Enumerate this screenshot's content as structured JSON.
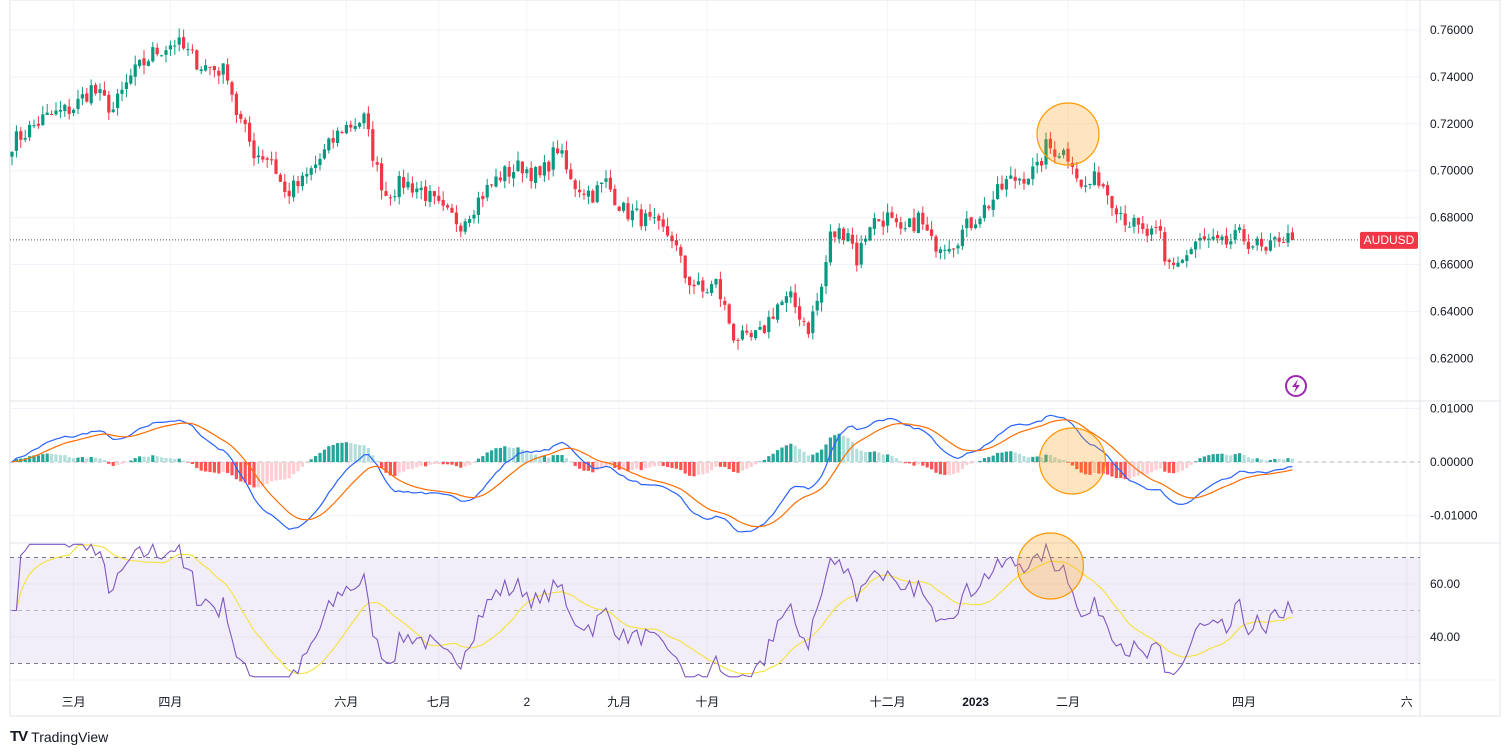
{
  "chart_data": {
    "type": "candlestick",
    "symbol": "AUDUSD",
    "price_axis": {
      "ticks": [
        "0.76000",
        "0.74000",
        "0.72000",
        "0.70000",
        "0.68000",
        "0.66000",
        "0.64000",
        "0.62000"
      ],
      "values": [
        0.76,
        0.74,
        0.72,
        0.7,
        0.68,
        0.66,
        0.64,
        0.62
      ],
      "range": [
        0.6136,
        0.7728
      ]
    },
    "last_price": 0.6705,
    "close_path": [
      [
        0,
        0.712
      ],
      [
        7,
        0.722
      ],
      [
        14,
        0.727
      ],
      [
        18,
        0.735
      ],
      [
        23,
        0.726
      ],
      [
        27,
        0.74
      ],
      [
        32,
        0.75
      ],
      [
        37,
        0.755
      ],
      [
        43,
        0.745
      ],
      [
        49,
        0.742
      ],
      [
        51,
        0.725
      ],
      [
        55,
        0.708
      ],
      [
        59,
        0.705
      ],
      [
        62,
        0.69
      ],
      [
        66,
        0.695
      ],
      [
        70,
        0.705
      ],
      [
        75,
        0.718
      ],
      [
        80,
        0.722
      ],
      [
        83,
        0.7
      ],
      [
        85,
        0.69
      ],
      [
        89,
        0.695
      ],
      [
        93,
        0.692
      ],
      [
        98,
        0.682
      ],
      [
        102,
        0.678
      ],
      [
        107,
        0.69
      ],
      [
        111,
        0.698
      ],
      [
        116,
        0.702
      ],
      [
        120,
        0.697
      ],
      [
        124,
        0.71
      ],
      [
        127,
        0.695
      ],
      [
        132,
        0.69
      ],
      [
        135,
        0.695
      ],
      [
        139,
        0.683
      ],
      [
        143,
        0.68
      ],
      [
        147,
        0.675
      ],
      [
        150,
        0.672
      ],
      [
        153,
        0.655
      ],
      [
        157,
        0.648
      ],
      [
        160,
        0.652
      ],
      [
        164,
        0.63
      ],
      [
        167,
        0.627
      ],
      [
        170,
        0.63
      ],
      [
        174,
        0.643
      ],
      [
        177,
        0.645
      ],
      [
        181,
        0.633
      ],
      [
        184,
        0.65
      ],
      [
        186,
        0.672
      ],
      [
        190,
        0.675
      ],
      [
        192,
        0.662
      ],
      [
        195,
        0.678
      ],
      [
        199,
        0.68
      ],
      [
        202,
        0.672
      ],
      [
        206,
        0.68
      ],
      [
        209,
        0.669
      ],
      [
        214,
        0.67
      ],
      [
        218,
        0.678
      ],
      [
        223,
        0.688
      ],
      [
        226,
        0.695
      ],
      [
        230,
        0.698
      ],
      [
        233,
        0.7
      ],
      [
        235,
        0.71
      ],
      [
        239,
        0.708
      ],
      [
        241,
        0.705
      ],
      [
        243,
        0.692
      ],
      [
        247,
        0.697
      ],
      [
        250,
        0.688
      ],
      [
        253,
        0.68
      ],
      [
        257,
        0.673
      ],
      [
        261,
        0.672
      ],
      [
        262,
        0.66
      ],
      [
        266,
        0.662
      ],
      [
        270,
        0.67
      ],
      [
        275,
        0.668
      ],
      [
        279,
        0.672
      ],
      [
        283,
        0.668
      ],
      [
        285,
        0.664
      ],
      [
        288,
        0.672
      ],
      [
        291,
        0.6705
      ]
    ],
    "time_axis": {
      "labels": [
        "三月",
        "四月",
        "六月",
        "七月",
        "2",
        "九月",
        "十月",
        "十二月",
        "2023",
        "二月",
        "四月",
        "六"
      ],
      "days": [
        14,
        36,
        76,
        97,
        117,
        138,
        158,
        199,
        219,
        240,
        280,
        317
      ]
    },
    "macd": {
      "ticks": [
        "0.01000",
        "0.00000",
        "-0.01000"
      ],
      "values": [
        0.01,
        0,
        -0.01
      ],
      "fast": 12,
      "slow": 26,
      "signal": 9
    },
    "rsi": {
      "ticks": [
        "60.00",
        "40.00"
      ],
      "values": [
        60,
        40
      ],
      "length": 14,
      "ma_length": 14,
      "upper": 70,
      "lower": 30,
      "middle": 50
    },
    "highlights": [
      {
        "pane": "price",
        "day": 240
      },
      {
        "pane": "macd",
        "day": 241
      },
      {
        "pane": "rsi",
        "day": 236
      }
    ],
    "colors": {
      "up": "#089981",
      "down": "#f23645",
      "macd": "#2962ff",
      "signal": "#ff6d00",
      "hist_up": "#26a69a",
      "hist_up_light": "#b2dfdb",
      "hist_down": "#ff5252",
      "hist_down_light": "#ffcdd2",
      "rsi": "#7e57c2",
      "rsi_ma": "#f5e23a",
      "highlight": "#ff9800"
    }
  },
  "branding": {
    "name": "TradingView"
  }
}
